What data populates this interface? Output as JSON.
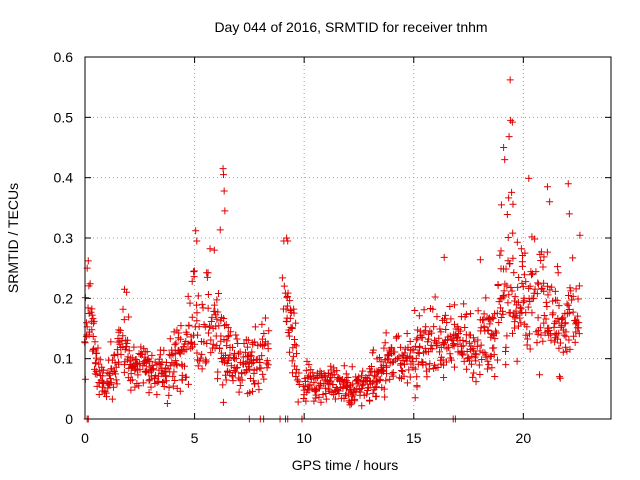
{
  "chart_data": {
    "type": "scatter",
    "title": "Day 044 of 2016, SRMTID for receiver tnhm",
    "xlabel": "GPS time / hours",
    "ylabel": "SRMTID / TECUs",
    "xlim": [
      0,
      24
    ],
    "ylim": [
      0,
      0.6
    ],
    "xticks": [
      0,
      5,
      10,
      15,
      20
    ],
    "xtick_labels": [
      "0",
      "5",
      "10",
      "15",
      "20"
    ],
    "yticks": [
      0,
      0.1,
      0.2,
      0.3,
      0.4,
      0.5,
      0.6
    ],
    "ytick_labels": [
      "0",
      "0.1",
      "0.2",
      "0.3",
      "0.4",
      "0.5",
      "0.6"
    ],
    "grid": true,
    "marker": "+",
    "color": "#e00000",
    "trend": {
      "x": [
        0.0,
        0.2,
        0.5,
        0.8,
        1.0,
        1.2,
        1.5,
        1.7,
        2.0,
        2.3,
        2.6,
        3.0,
        3.3,
        3.7,
        4.0,
        4.4,
        4.7,
        5.0,
        5.3,
        5.7,
        6.0,
        6.3,
        6.6,
        6.9,
        7.3,
        7.7,
        8.0,
        8.3,
        9.1,
        9.4,
        9.7,
        10.0,
        10.5,
        11.0,
        11.5,
        12.0,
        12.5,
        13.0,
        13.3,
        13.6,
        13.9,
        14.2,
        14.6,
        15.0,
        15.3,
        15.7,
        16.0,
        16.3,
        16.7,
        17.0,
        17.3,
        17.7,
        18.0,
        18.3,
        18.6,
        18.9,
        19.2,
        19.5,
        19.8,
        20.1,
        20.4,
        20.7,
        21.0,
        21.3,
        21.6,
        21.9,
        22.2,
        22.6
      ],
      "y": [
        0.12,
        0.18,
        0.09,
        0.06,
        0.06,
        0.07,
        0.1,
        0.15,
        0.1,
        0.08,
        0.1,
        0.08,
        0.07,
        0.08,
        0.09,
        0.12,
        0.14,
        0.17,
        0.15,
        0.18,
        0.14,
        0.12,
        0.1,
        0.09,
        0.09,
        0.08,
        0.1,
        0.1,
        0.2,
        0.15,
        0.07,
        0.06,
        0.06,
        0.06,
        0.055,
        0.05,
        0.05,
        0.06,
        0.07,
        0.08,
        0.1,
        0.11,
        0.1,
        0.09,
        0.11,
        0.12,
        0.13,
        0.14,
        0.13,
        0.12,
        0.13,
        0.12,
        0.12,
        0.15,
        0.13,
        0.19,
        0.2,
        0.24,
        0.2,
        0.21,
        0.22,
        0.19,
        0.2,
        0.17,
        0.15,
        0.14,
        0.15,
        0.15
      ],
      "spread": [
        0.05,
        0.06,
        0.03,
        0.02,
        0.02,
        0.025,
        0.03,
        0.05,
        0.03,
        0.025,
        0.03,
        0.03,
        0.025,
        0.03,
        0.03,
        0.04,
        0.05,
        0.07,
        0.05,
        0.07,
        0.05,
        0.05,
        0.04,
        0.035,
        0.035,
        0.03,
        0.03,
        0.03,
        0.06,
        0.05,
        0.02,
        0.02,
        0.02,
        0.02,
        0.02,
        0.018,
        0.02,
        0.02,
        0.025,
        0.03,
        0.03,
        0.03,
        0.03,
        0.03,
        0.04,
        0.04,
        0.04,
        0.04,
        0.04,
        0.03,
        0.04,
        0.04,
        0.04,
        0.05,
        0.04,
        0.07,
        0.08,
        0.1,
        0.07,
        0.07,
        0.07,
        0.06,
        0.06,
        0.05,
        0.05,
        0.04,
        0.05,
        0.04
      ]
    },
    "extra_points": {
      "x": [
        6.3,
        6.32,
        6.35,
        6.38,
        19.4,
        19.42,
        19.35,
        19.5,
        19.1,
        19.15,
        19.0,
        21.1,
        21.2,
        22.05,
        22.1,
        9.2,
        9.25,
        5.05,
        5.1,
        5.9,
        1.8,
        1.9,
        0.15,
        0.1
      ],
      "y": [
        0.415,
        0.405,
        0.378,
        0.345,
        0.562,
        0.495,
        0.468,
        0.492,
        0.45,
        0.43,
        0.355,
        0.385,
        0.36,
        0.39,
        0.34,
        0.3,
        0.295,
        0.312,
        0.295,
        0.28,
        0.215,
        0.21,
        0.262,
        0.25
      ]
    },
    "zero_points": {
      "x": [
        0.1,
        0.15,
        7.5,
        8.0,
        8.15,
        8.9,
        9.15,
        9.25,
        9.9,
        16.8,
        16.9
      ],
      "y": [
        0,
        0,
        0,
        0,
        0,
        0,
        0,
        0,
        0,
        0,
        0
      ]
    },
    "gap_ranges": [
      [
        8.4,
        9.0
      ],
      [
        9.8,
        9.95
      ]
    ],
    "point_step_hours": 0.033
  }
}
